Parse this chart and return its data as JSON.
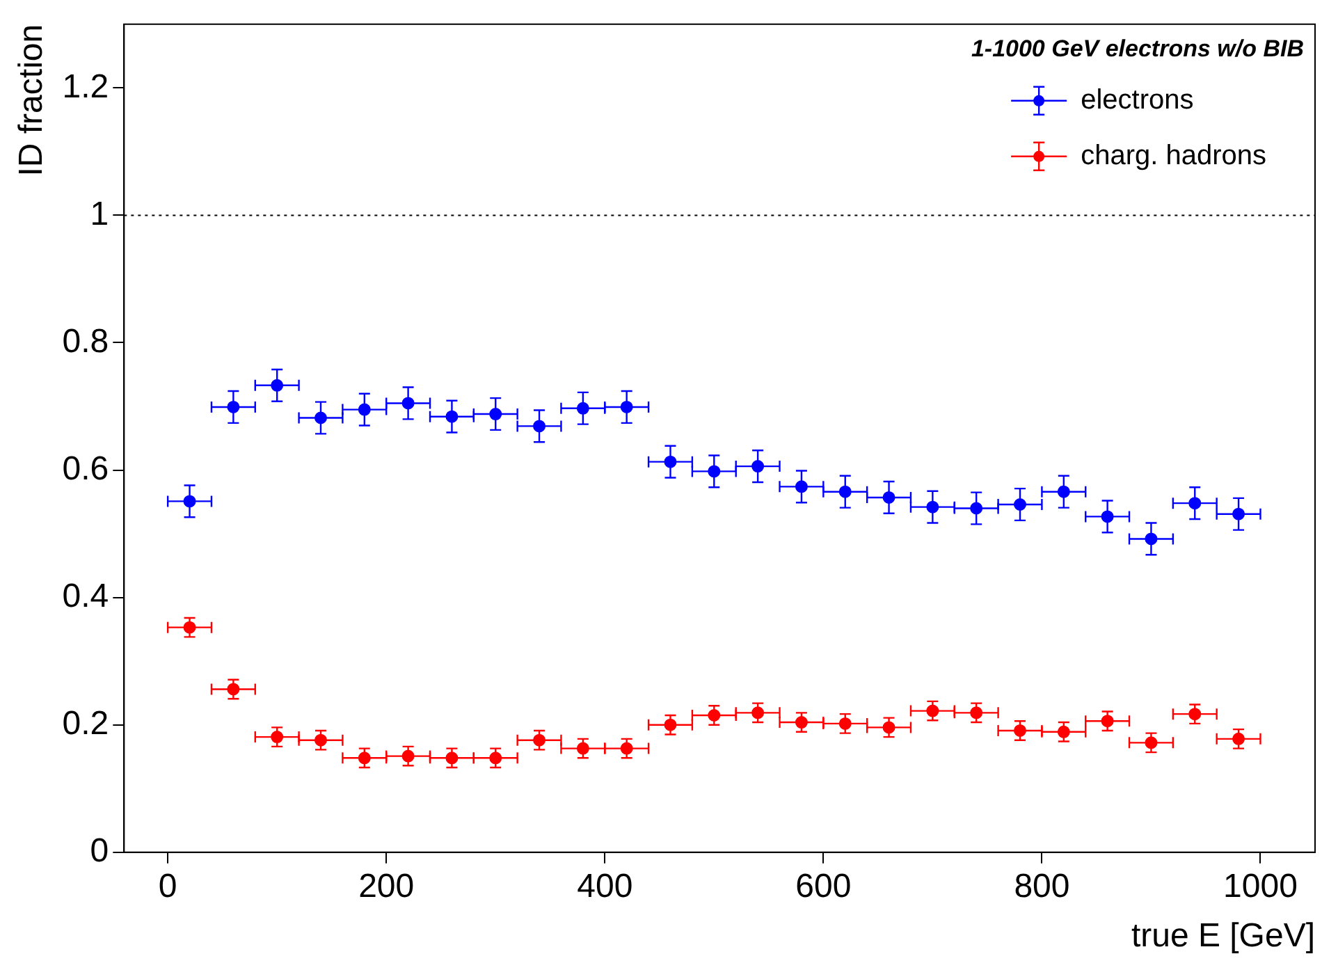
{
  "chart_data": {
    "type": "scatter",
    "title": "1-1000 GeV electrons w/o BIB",
    "xlabel": "true E [GeV]",
    "ylabel": "ID fraction",
    "x": [
      20,
      60,
      100,
      140,
      180,
      220,
      260,
      300,
      340,
      380,
      420,
      460,
      500,
      540,
      580,
      620,
      660,
      700,
      740,
      780,
      820,
      860,
      900,
      940,
      980
    ],
    "series": [
      {
        "name": "electrons",
        "color": "#0000ff",
        "xerrors": [
          20,
          20,
          20,
          20,
          20,
          20,
          20,
          20,
          20,
          20,
          20,
          20,
          20,
          20,
          20,
          20,
          20,
          20,
          20,
          20,
          20,
          20,
          20,
          20,
          20
        ],
        "values": [
          0.551,
          0.699,
          0.733,
          0.682,
          0.695,
          0.705,
          0.684,
          0.688,
          0.669,
          0.697,
          0.699,
          0.613,
          0.598,
          0.606,
          0.574,
          0.566,
          0.557,
          0.542,
          0.54,
          0.546,
          0.566,
          0.527,
          0.492,
          0.548,
          0.531
        ],
        "errors": [
          0.025,
          0.025,
          0.025,
          0.025,
          0.025,
          0.025,
          0.025,
          0.025,
          0.025,
          0.025,
          0.025,
          0.025,
          0.025,
          0.025,
          0.025,
          0.025,
          0.025,
          0.025,
          0.025,
          0.025,
          0.025,
          0.025,
          0.025,
          0.025,
          0.025
        ]
      },
      {
        "name": "charg. hadrons",
        "color": "#ff0000",
        "xerrors": [
          20,
          20,
          20,
          20,
          20,
          20,
          20,
          20,
          20,
          20,
          20,
          20,
          20,
          20,
          20,
          20,
          20,
          20,
          20,
          20,
          20,
          20,
          20,
          20,
          20
        ],
        "values": [
          0.353,
          0.256,
          0.181,
          0.176,
          0.148,
          0.151,
          0.148,
          0.148,
          0.176,
          0.163,
          0.163,
          0.2,
          0.215,
          0.219,
          0.204,
          0.202,
          0.196,
          0.222,
          0.219,
          0.191,
          0.189,
          0.206,
          0.172,
          0.217,
          0.178
        ],
        "errors": [
          0.015,
          0.015,
          0.015,
          0.015,
          0.015,
          0.015,
          0.015,
          0.015,
          0.015,
          0.015,
          0.015,
          0.015,
          0.015,
          0.015,
          0.015,
          0.015,
          0.015,
          0.015,
          0.015,
          0.015,
          0.015,
          0.015,
          0.015,
          0.015,
          0.015
        ]
      }
    ],
    "xlim": [
      -40,
      1050
    ],
    "ylim": [
      0,
      1.3
    ],
    "xticks": [
      0,
      200,
      400,
      600,
      800,
      1000
    ],
    "yticks": [
      0,
      0.2,
      0.4,
      0.6,
      0.8,
      1,
      1.2
    ],
    "ref_lines": [
      {
        "axis": "y",
        "value": 1,
        "color": "#000000",
        "line_style": "dotted"
      }
    ],
    "grid": false,
    "legend": "top right",
    "marker": "circle"
  }
}
